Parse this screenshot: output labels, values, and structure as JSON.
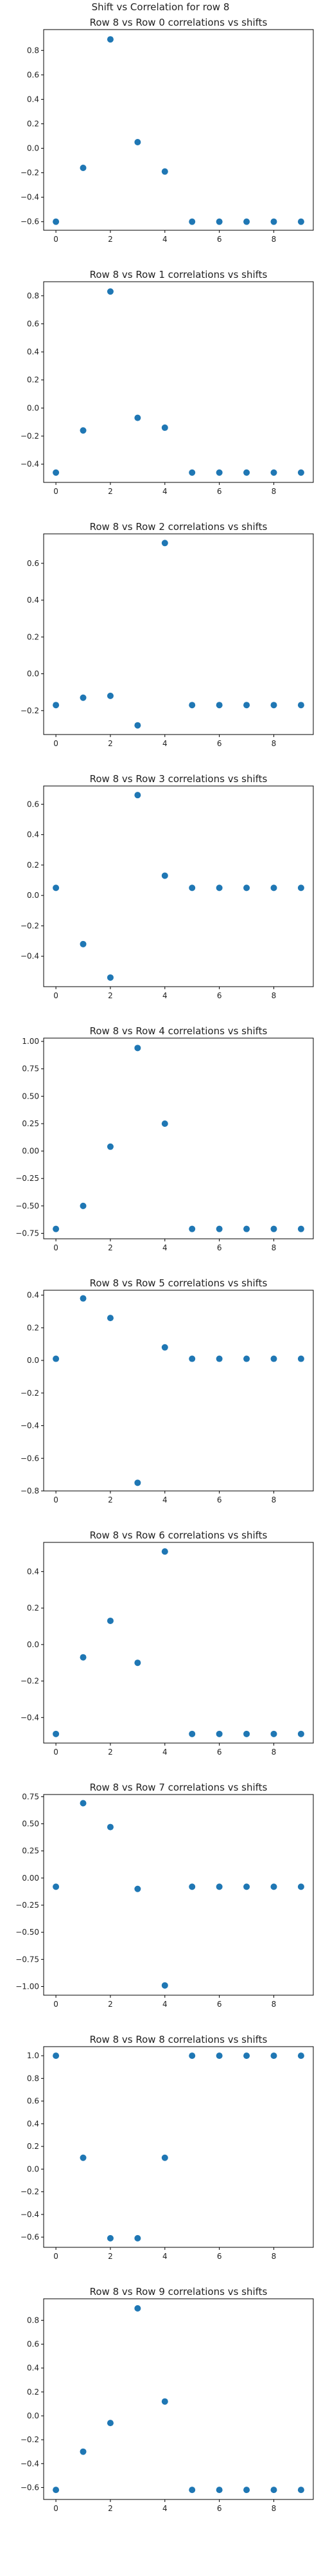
{
  "figure": {
    "suptitle": "Shift vs Correlation for row 8"
  },
  "colors": {
    "marker": "#1f77b4",
    "axis": "#000000",
    "background": "#ffffff"
  },
  "chart_data": [
    {
      "type": "scatter",
      "title": "Row 8 vs Row 0 correlations vs shifts",
      "xlabel": "",
      "ylabel": "",
      "x": [
        0,
        1,
        2,
        3,
        4,
        5,
        6,
        7,
        8,
        9
      ],
      "y": [
        -0.6,
        -0.16,
        0.89,
        0.05,
        -0.19,
        -0.6,
        -0.6,
        -0.6,
        -0.6,
        -0.6
      ],
      "xlim": [
        -0.45,
        9.45
      ],
      "ylim": [
        -0.67,
        0.97
      ],
      "xticks": [
        0,
        2,
        4,
        6,
        8
      ],
      "yticks": [
        -0.6,
        -0.4,
        -0.2,
        0.0,
        0.2,
        0.4,
        0.6,
        0.8
      ],
      "ytick_labels": [
        "−0.6",
        "−0.4",
        "−0.2",
        "0.0",
        "0.2",
        "0.4",
        "0.6",
        "0.8"
      ]
    },
    {
      "type": "scatter",
      "title": "Row 8 vs Row 1 correlations vs shifts",
      "xlabel": "",
      "ylabel": "",
      "x": [
        0,
        1,
        2,
        3,
        4,
        5,
        6,
        7,
        8,
        9
      ],
      "y": [
        -0.46,
        -0.16,
        0.83,
        -0.07,
        -0.14,
        -0.46,
        -0.46,
        -0.46,
        -0.46,
        -0.46
      ],
      "xlim": [
        -0.45,
        9.45
      ],
      "ylim": [
        -0.53,
        0.9
      ],
      "xticks": [
        0,
        2,
        4,
        6,
        8
      ],
      "yticks": [
        -0.4,
        -0.2,
        0.0,
        0.2,
        0.4,
        0.6,
        0.8
      ],
      "ytick_labels": [
        "−0.4",
        "−0.2",
        "0.0",
        "0.2",
        "0.4",
        "0.6",
        "0.8"
      ]
    },
    {
      "type": "scatter",
      "title": "Row 8 vs Row 2 correlations vs shifts",
      "xlabel": "",
      "ylabel": "",
      "x": [
        0,
        1,
        2,
        3,
        4,
        5,
        6,
        7,
        8,
        9
      ],
      "y": [
        -0.17,
        -0.13,
        -0.12,
        -0.28,
        0.71,
        -0.17,
        -0.17,
        -0.17,
        -0.17,
        -0.17
      ],
      "xlim": [
        -0.45,
        9.45
      ],
      "ylim": [
        -0.33,
        0.76
      ],
      "xticks": [
        0,
        2,
        4,
        6,
        8
      ],
      "yticks": [
        -0.2,
        0.0,
        0.2,
        0.4,
        0.6
      ],
      "ytick_labels": [
        "−0.2",
        "0.0",
        "0.2",
        "0.4",
        "0.6"
      ]
    },
    {
      "type": "scatter",
      "title": "Row 8 vs Row 3 correlations vs shifts",
      "xlabel": "",
      "ylabel": "",
      "x": [
        0,
        1,
        2,
        3,
        4,
        5,
        6,
        7,
        8,
        9
      ],
      "y": [
        0.05,
        -0.32,
        -0.54,
        0.66,
        0.13,
        0.05,
        0.05,
        0.05,
        0.05,
        0.05
      ],
      "xlim": [
        -0.45,
        9.45
      ],
      "ylim": [
        -0.6,
        0.72
      ],
      "xticks": [
        0,
        2,
        4,
        6,
        8
      ],
      "yticks": [
        -0.4,
        -0.2,
        0.0,
        0.2,
        0.4,
        0.6
      ],
      "ytick_labels": [
        "−0.4",
        "−0.2",
        "0.0",
        "0.2",
        "0.4",
        "0.6"
      ]
    },
    {
      "type": "scatter",
      "title": "Row 8 vs Row 4 correlations vs shifts",
      "xlabel": "",
      "ylabel": "",
      "x": [
        0,
        1,
        2,
        3,
        4,
        5,
        6,
        7,
        8,
        9
      ],
      "y": [
        -0.71,
        -0.5,
        0.04,
        0.94,
        0.25,
        -0.71,
        -0.71,
        -0.71,
        -0.71,
        -0.71
      ],
      "xlim": [
        -0.45,
        9.45
      ],
      "ylim": [
        -0.8,
        1.03
      ],
      "xticks": [
        0,
        2,
        4,
        6,
        8
      ],
      "yticks": [
        -0.75,
        -0.5,
        -0.25,
        0.0,
        0.25,
        0.5,
        0.75,
        1.0
      ],
      "ytick_labels": [
        "−0.75",
        "−0.50",
        "−0.25",
        "0.00",
        "0.25",
        "0.50",
        "0.75",
        "1.00"
      ]
    },
    {
      "type": "scatter",
      "title": "Row 8 vs Row 5 correlations vs shifts",
      "xlabel": "",
      "ylabel": "",
      "x": [
        0,
        1,
        2,
        3,
        4,
        5,
        6,
        7,
        8,
        9
      ],
      "y": [
        0.01,
        0.38,
        0.26,
        -0.75,
        0.08,
        0.01,
        0.01,
        0.01,
        0.01,
        0.01
      ],
      "xlim": [
        -0.45,
        9.45
      ],
      "ylim": [
        -0.8,
        0.43
      ],
      "xticks": [
        0,
        2,
        4,
        6,
        8
      ],
      "yticks": [
        -0.8,
        -0.6,
        -0.4,
        -0.2,
        0.0,
        0.2,
        0.4
      ],
      "ytick_labels": [
        "−0.8",
        "−0.6",
        "−0.4",
        "−0.2",
        "0.0",
        "0.2",
        "0.4"
      ]
    },
    {
      "type": "scatter",
      "title": "Row 8 vs Row 6 correlations vs shifts",
      "xlabel": "",
      "ylabel": "",
      "x": [
        0,
        1,
        2,
        3,
        4,
        5,
        6,
        7,
        8,
        9
      ],
      "y": [
        -0.49,
        -0.07,
        0.13,
        -0.1,
        0.51,
        -0.49,
        -0.49,
        -0.49,
        -0.49,
        -0.49
      ],
      "xlim": [
        -0.45,
        9.45
      ],
      "ylim": [
        -0.54,
        0.56
      ],
      "xticks": [
        0,
        2,
        4,
        6,
        8
      ],
      "yticks": [
        -0.4,
        -0.2,
        0.0,
        0.2,
        0.4
      ],
      "ytick_labels": [
        "−0.4",
        "−0.2",
        "0.0",
        "0.2",
        "0.4"
      ]
    },
    {
      "type": "scatter",
      "title": "Row 8 vs Row 7 correlations vs shifts",
      "xlabel": "",
      "ylabel": "",
      "x": [
        0,
        1,
        2,
        3,
        4,
        5,
        6,
        7,
        8,
        9
      ],
      "y": [
        -0.08,
        0.69,
        0.47,
        -0.1,
        -0.99,
        -0.08,
        -0.08,
        -0.08,
        -0.08,
        -0.08
      ],
      "xlim": [
        -0.45,
        9.45
      ],
      "ylim": [
        -1.08,
        0.77
      ],
      "xticks": [
        0,
        2,
        4,
        6,
        8
      ],
      "yticks": [
        -1.0,
        -0.75,
        -0.5,
        -0.25,
        0.0,
        0.25,
        0.5,
        0.75
      ],
      "ytick_labels": [
        "−1.00",
        "−0.75",
        "−0.50",
        "−0.25",
        "0.00",
        "0.25",
        "0.50",
        "0.75"
      ]
    },
    {
      "type": "scatter",
      "title": "Row 8 vs Row 8 correlations vs shifts",
      "xlabel": "",
      "ylabel": "",
      "x": [
        0,
        1,
        2,
        3,
        4,
        5,
        6,
        7,
        8,
        9
      ],
      "y": [
        1.0,
        0.1,
        -0.61,
        -0.61,
        0.1,
        1.0,
        1.0,
        1.0,
        1.0,
        1.0
      ],
      "xlim": [
        -0.45,
        9.45
      ],
      "ylim": [
        -0.69,
        1.08
      ],
      "xticks": [
        0,
        2,
        4,
        6,
        8
      ],
      "yticks": [
        -0.6,
        -0.4,
        -0.2,
        0.0,
        0.2,
        0.4,
        0.6,
        0.8,
        1.0
      ],
      "ytick_labels": [
        "−0.6",
        "−0.4",
        "−0.2",
        "0.0",
        "0.2",
        "0.4",
        "0.6",
        "0.8",
        "1.0"
      ]
    },
    {
      "type": "scatter",
      "title": "Row 8 vs Row 9 correlations vs shifts",
      "xlabel": "",
      "ylabel": "",
      "x": [
        0,
        1,
        2,
        3,
        4,
        5,
        6,
        7,
        8,
        9
      ],
      "y": [
        -0.62,
        -0.3,
        -0.06,
        0.9,
        0.12,
        -0.62,
        -0.62,
        -0.62,
        -0.62,
        -0.62
      ],
      "xlim": [
        -0.45,
        9.45
      ],
      "ylim": [
        -0.7,
        0.98
      ],
      "xticks": [
        0,
        2,
        4,
        6,
        8
      ],
      "yticks": [
        -0.6,
        -0.4,
        -0.2,
        0.0,
        0.2,
        0.4,
        0.6,
        0.8
      ],
      "ytick_labels": [
        "−0.6",
        "−0.4",
        "−0.2",
        "0.0",
        "0.2",
        "0.4",
        "0.6",
        "0.8"
      ]
    }
  ]
}
